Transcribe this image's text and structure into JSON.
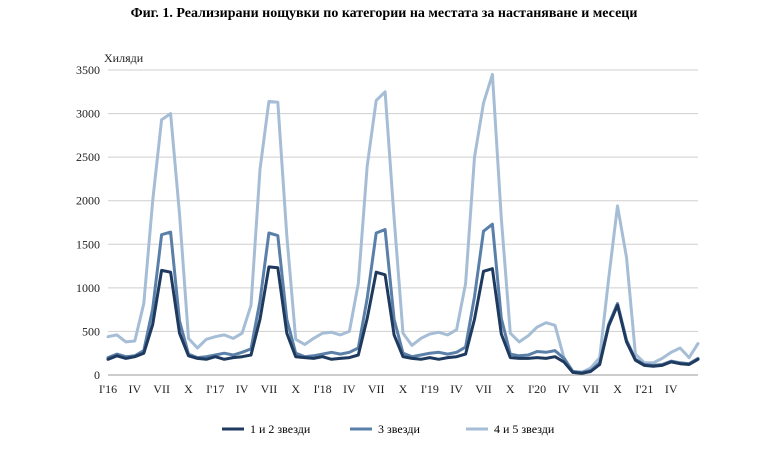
{
  "chart_data": {
    "type": "line",
    "title": "Фиг. 1. Реализирани нощувки по категории на местата за настаняване и месеци",
    "ylabel": "Хиляди",
    "ylim": [
      0,
      3500
    ],
    "yticks": [
      0,
      500,
      1000,
      1500,
      2000,
      2500,
      3000,
      3500
    ],
    "grid": true,
    "legend": "bottom",
    "x_tick_labels": [
      {
        "index": 0,
        "label": "I'16"
      },
      {
        "index": 3,
        "label": "IV"
      },
      {
        "index": 6,
        "label": "VII"
      },
      {
        "index": 9,
        "label": "X"
      },
      {
        "index": 12,
        "label": "I'17"
      },
      {
        "index": 15,
        "label": "IV"
      },
      {
        "index": 18,
        "label": "VII"
      },
      {
        "index": 21,
        "label": "X"
      },
      {
        "index": 24,
        "label": "I'18"
      },
      {
        "index": 27,
        "label": "IV"
      },
      {
        "index": 30,
        "label": "VII"
      },
      {
        "index": 33,
        "label": "X"
      },
      {
        "index": 36,
        "label": "I'19"
      },
      {
        "index": 39,
        "label": "IV"
      },
      {
        "index": 42,
        "label": "VII"
      },
      {
        "index": 45,
        "label": "X"
      },
      {
        "index": 48,
        "label": "I'20"
      },
      {
        "index": 51,
        "label": "IV"
      },
      {
        "index": 54,
        "label": "VII"
      },
      {
        "index": 57,
        "label": "X"
      },
      {
        "index": 60,
        "label": "I'21"
      },
      {
        "index": 63,
        "label": "IV"
      }
    ],
    "series": [
      {
        "name": "1 и 2 звезди",
        "color": "#1f3a5f",
        "values": [
          180,
          220,
          190,
          210,
          250,
          580,
          1200,
          1180,
          480,
          220,
          190,
          180,
          210,
          180,
          200,
          210,
          230,
          640,
          1240,
          1230,
          480,
          210,
          200,
          190,
          210,
          180,
          190,
          200,
          230,
          650,
          1180,
          1150,
          460,
          210,
          190,
          180,
          200,
          180,
          200,
          210,
          240,
          640,
          1190,
          1220,
          470,
          200,
          190,
          190,
          200,
          190,
          210,
          150,
          30,
          20,
          40,
          120,
          560,
          800,
          380,
          170,
          110,
          100,
          110,
          150,
          130,
          120,
          180
        ]
      },
      {
        "name": "3 звезди",
        "color": "#5a7fa8",
        "values": [
          200,
          240,
          210,
          220,
          280,
          760,
          1610,
          1640,
          620,
          240,
          200,
          210,
          230,
          250,
          230,
          260,
          300,
          850,
          1630,
          1600,
          640,
          250,
          210,
          220,
          240,
          260,
          240,
          260,
          310,
          880,
          1630,
          1670,
          640,
          250,
          210,
          230,
          250,
          260,
          240,
          260,
          320,
          900,
          1650,
          1730,
          650,
          240,
          220,
          230,
          270,
          260,
          280,
          190,
          40,
          30,
          50,
          140,
          580,
          820,
          400,
          180,
          120,
          110,
          120,
          160,
          140,
          130,
          190
        ]
      },
      {
        "name": "4 и 5 звезди",
        "color": "#a6bdd6",
        "values": [
          440,
          460,
          380,
          390,
          820,
          2000,
          2930,
          3000,
          1850,
          420,
          310,
          410,
          440,
          460,
          420,
          480,
          800,
          2360,
          3140,
          3130,
          1600,
          410,
          350,
          420,
          480,
          490,
          460,
          500,
          1050,
          2400,
          3150,
          3250,
          1800,
          480,
          340,
          420,
          470,
          490,
          460,
          520,
          1050,
          2500,
          3120,
          3450,
          1800,
          480,
          380,
          450,
          550,
          600,
          570,
          200,
          40,
          30,
          80,
          200,
          1100,
          1940,
          1350,
          240,
          140,
          140,
          190,
          260,
          310,
          200,
          360
        ]
      }
    ]
  }
}
